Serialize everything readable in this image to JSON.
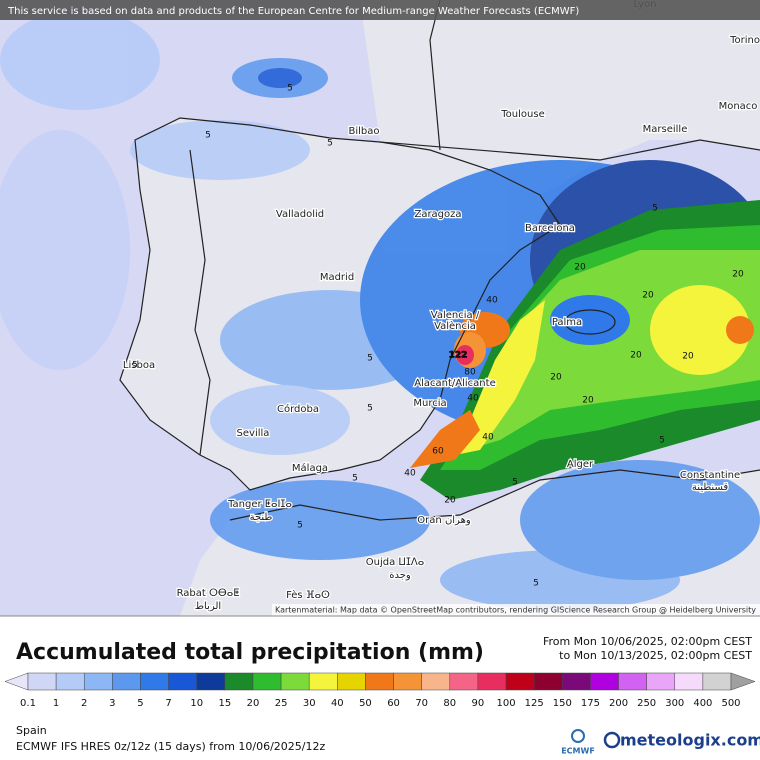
{
  "header": {
    "notice": "This service is based on data and products of the European Centre for Medium-range Weather Forecasts (ECMWF)"
  },
  "map": {
    "cities": [
      "Lyon",
      "Torino",
      "Monaco",
      "Toulouse",
      "Marseille",
      "Bilbao",
      "Valladolid",
      "Zaragoza",
      "Barcelona",
      "Madrid",
      "Valencia /",
      "València",
      "Palma",
      "Lisboa",
      "Alacant/Alicante",
      "Murcia",
      "Córdoba",
      "Sevilla",
      "Málaga",
      "Alger",
      "Constantine",
      "قسنطينة",
      "Tanger ⵟⴰⵏⵊⴰ",
      "طنجة",
      "Oran وهران",
      "Oujda ⵡⵊⴷⴰ",
      "وجدة",
      "Rabat ⵔⴱⴰⵟ",
      "الرباط",
      "Fès ⴼⴰⵙ"
    ],
    "contour_labels": [
      "5",
      "5",
      "5",
      "5",
      "5",
      "5",
      "5",
      "5",
      "5",
      "5",
      "5",
      "5",
      "20",
      "20",
      "20",
      "20",
      "20",
      "20",
      "20",
      "20",
      "40",
      "40",
      "40",
      "40",
      "60",
      "80",
      "122"
    ],
    "attribution": "Kartenmaterial: Map data © OpenStreetMap contributors, rendering GIScience Research Group @ Heidelberg University"
  },
  "footer": {
    "title": "Accumulated total precipitation (mm)",
    "from": "From Mon 10/06/2025, 02:00pm CEST",
    "to": "to Mon 10/13/2025, 02:00pm CEST",
    "region": "Spain",
    "model": "ECMWF IFS HRES 0z/12z (15 days) from 10/06/2025/12z",
    "ecmwf_logo": "ECMWF",
    "brand": "meteologix.com"
  },
  "legend": {
    "labels": [
      "0.1",
      "1",
      "2",
      "3",
      "5",
      "7",
      "10",
      "15",
      "20",
      "25",
      "30",
      "40",
      "50",
      "60",
      "70",
      "80",
      "90",
      "100",
      "125",
      "150",
      "175",
      "200",
      "250",
      "300",
      "400",
      "500"
    ],
    "colors": [
      "#e6e6f8",
      "#d0d6f6",
      "#b4cbf8",
      "#8cb6f4",
      "#5c98ee",
      "#2f7ae8",
      "#1858d6",
      "#0e3a9c",
      "#1a8a2a",
      "#2fbd2f",
      "#7cda3a",
      "#f4f43c",
      "#e6d400",
      "#f07818",
      "#f49436",
      "#f8b48a",
      "#f46486",
      "#e82e5e",
      "#c00018",
      "#8e0030",
      "#7a0a7a",
      "#b000e0",
      "#d262f2",
      "#e9a6f9",
      "#f5dafc",
      "#d2d2d2",
      "#a0a0a0"
    ]
  }
}
